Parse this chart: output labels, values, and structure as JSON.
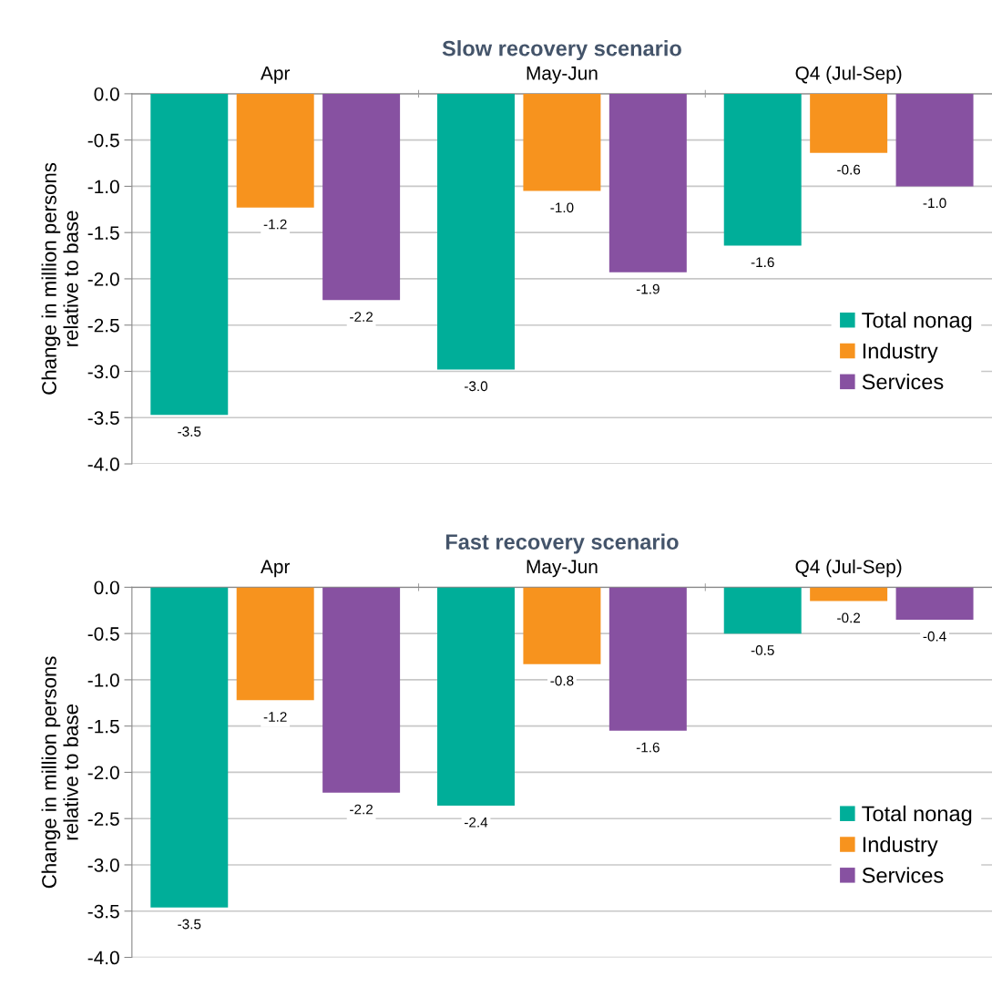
{
  "chart_data": [
    {
      "type": "bar",
      "title": "Slow recovery scenario",
      "ylabel": "Change in million persons\nrelative to base",
      "categories": [
        "Apr",
        "May-Jun",
        "Q4 (Jul-Sep)"
      ],
      "series": [
        {
          "name": "Total nonag",
          "color": "#00ae99",
          "values": [
            -3.47,
            -2.98,
            -1.64
          ],
          "value_labels": [
            "-3.5",
            "-3.0",
            "-1.6"
          ]
        },
        {
          "name": "Industry",
          "color": "#f7931e",
          "values": [
            -1.23,
            -1.05,
            -0.64
          ],
          "value_labels": [
            "-1.2",
            "-1.0",
            "-0.6"
          ]
        },
        {
          "name": "Services",
          "color": "#8751a1",
          "values": [
            -2.23,
            -1.93,
            -1.0
          ],
          "value_labels": [
            "-2.2",
            "-1.9",
            "-1.0"
          ]
        }
      ],
      "ylim": [
        -4.0,
        0.0
      ],
      "yticks": [
        {
          "value": -4,
          "label": "-4.0"
        },
        {
          "value": -3.5,
          "label": "-3.5"
        },
        {
          "value": -3,
          "label": "-3.0"
        },
        {
          "value": -2.5,
          "label": "-2.5"
        },
        {
          "value": -2,
          "label": "-2.0"
        },
        {
          "value": -1.5,
          "label": "-1.5"
        },
        {
          "value": -1,
          "label": "-1.0"
        },
        {
          "value": -0.5,
          "label": "-0.5"
        },
        {
          "value": 0,
          "label": "0.0"
        }
      ],
      "grid": "y",
      "legend": "right"
    },
    {
      "type": "bar",
      "title": "Fast recovery scenario",
      "ylabel": "Change in million persons\nrelative to base",
      "categories": [
        "Apr",
        "May-Jun",
        "Q4 (Jul-Sep)"
      ],
      "series": [
        {
          "name": "Total nonag",
          "color": "#00ae99",
          "values": [
            -3.46,
            -2.36,
            -0.5
          ],
          "value_labels": [
            "-3.5",
            "-2.4",
            "-0.5"
          ]
        },
        {
          "name": "Industry",
          "color": "#f7931e",
          "values": [
            -1.22,
            -0.83,
            -0.15
          ],
          "value_labels": [
            "-1.2",
            "-0.8",
            "-0.2"
          ]
        },
        {
          "name": "Services",
          "color": "#8751a1",
          "values": [
            -2.22,
            -1.55,
            -0.35
          ],
          "value_labels": [
            "-2.2",
            "-1.6",
            "-0.4"
          ]
        }
      ],
      "ylim": [
        -4.0,
        0.0
      ],
      "yticks": [
        {
          "value": -4,
          "label": "-4.0"
        },
        {
          "value": -3.5,
          "label": "-3.5"
        },
        {
          "value": -3,
          "label": "-3.0"
        },
        {
          "value": -2.5,
          "label": "-2.5"
        },
        {
          "value": -2,
          "label": "-2.0"
        },
        {
          "value": -1.5,
          "label": "-1.5"
        },
        {
          "value": -1,
          "label": "-1.0"
        },
        {
          "value": -0.5,
          "label": "-0.5"
        },
        {
          "value": 0,
          "label": "0.0"
        }
      ],
      "grid": "y",
      "legend": "right"
    }
  ]
}
